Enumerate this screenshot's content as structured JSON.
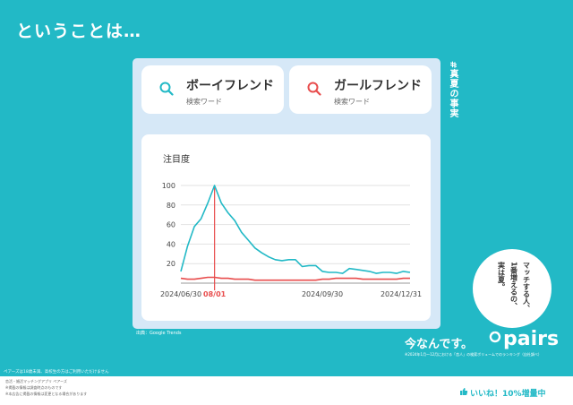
{
  "headline": "ということは…",
  "cards": [
    {
      "term": "ボーイフレンド",
      "sub": "検索ワード",
      "icon": "search-icon",
      "color": "#22b9c6"
    },
    {
      "term": "ガールフレンド",
      "sub": "検索ワード",
      "icon": "search-icon",
      "color": "#e84c4c"
    }
  ],
  "hashtag": "#真夏の事実",
  "bubble_lines": [
    "マッチする人、",
    "1番増えるの、",
    "実は夏。"
  ],
  "tagline": "今なんです。",
  "brand": "pairs",
  "source": "出典：Google Trends",
  "note_right": "※2024年1月〜12月における「恋人」の検索ボリュームでのランキング（自社調べ）",
  "footer_note_top": "ペアーズは18歳未満、高校生の方はご利用いただけません",
  "footer_lines": [
    "恋活・婚活マッチングアプリ ペアーズ",
    "※掲載の情報は調査時点のものです",
    "※本広告に掲載の情報は変更となる場合があります"
  ],
  "badge": "いいね！10%増量中",
  "chart_data": {
    "type": "line",
    "ylabel": "注目度",
    "ylim": [
      0,
      100
    ],
    "yticks": [
      20,
      40,
      60,
      80,
      100
    ],
    "xtick_labels": [
      "2024/06/30",
      "08/01",
      "2024/09/30",
      "2024/12/31"
    ],
    "highlight_label": "08/01",
    "series": [
      {
        "color": "#22b9c6",
        "values": [
          12,
          38,
          58,
          66,
          82,
          100,
          82,
          72,
          64,
          52,
          44,
          36,
          31,
          27,
          24,
          23,
          24,
          24,
          17,
          18,
          18,
          12,
          11,
          11,
          10,
          15,
          14,
          13,
          12,
          10,
          11,
          11,
          10,
          12,
          11
        ]
      },
      {
        "color": "#e84c4c",
        "values": [
          5,
          4,
          4,
          5,
          6,
          6,
          5,
          5,
          4,
          4,
          4,
          3,
          3,
          3,
          3,
          3,
          3,
          3,
          3,
          3,
          3,
          4,
          4,
          5,
          5,
          5,
          5,
          4,
          4,
          4,
          4,
          4,
          4,
          5,
          5
        ]
      }
    ]
  }
}
